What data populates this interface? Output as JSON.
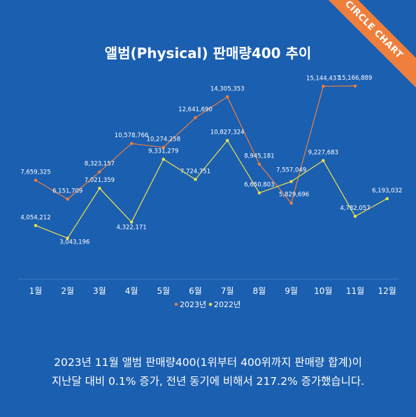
{
  "brand": {
    "ribbon_label": "CIRCLE CHART",
    "ribbon_color": "#f07f3c"
  },
  "chart_data": {
    "type": "line",
    "title": "앨범(Physical) 판매량400 추이",
    "categories": [
      "1월",
      "2월",
      "3월",
      "4월",
      "5월",
      "6월",
      "7월",
      "8월",
      "9월",
      "10월",
      "11월",
      "12월"
    ],
    "series": [
      {
        "name": "2023년",
        "color": "#f07f3c",
        "values": [
          7659325,
          6151709,
          8323157,
          10578766,
          10274258,
          12641690,
          14305353,
          8945181,
          5829696,
          15144437,
          15166889,
          null
        ],
        "labels": [
          "7,659,325",
          "6,151,709",
          "8,323,157",
          "10,578,766",
          "10,274,258",
          "12,641,690",
          "14,305,353",
          "8,945,181",
          "5,829,696",
          "15,144,437",
          "15,166,889",
          ""
        ]
      },
      {
        "name": "2022년",
        "color": "#f2e24a",
        "values": [
          4054212,
          3043196,
          7021359,
          4322171,
          9331279,
          7724751,
          10827324,
          6650803,
          7557049,
          9227683,
          4782057,
          6193032
        ],
        "labels": [
          "4,054,212",
          "3,043,196",
          "7,021,359",
          "4,322,171",
          "9,331,279",
          "7,724,751",
          "10,827,324",
          "6,650,803",
          "7,557,049",
          "9,227,683",
          "4,782,057",
          "6,193,032"
        ]
      }
    ],
    "xlabel": "",
    "ylabel": "",
    "ylim": [
      0,
      17000000
    ],
    "grid": false,
    "legend": "bottom"
  },
  "caption": {
    "line1": "2023년 11월 앨범 판매량400(1위부터 400위까지 판매량 합계)이",
    "line2": "지난달 대비 0.1% 증가, 전년 동기에 비해서 217.2% 증가했습니다."
  }
}
